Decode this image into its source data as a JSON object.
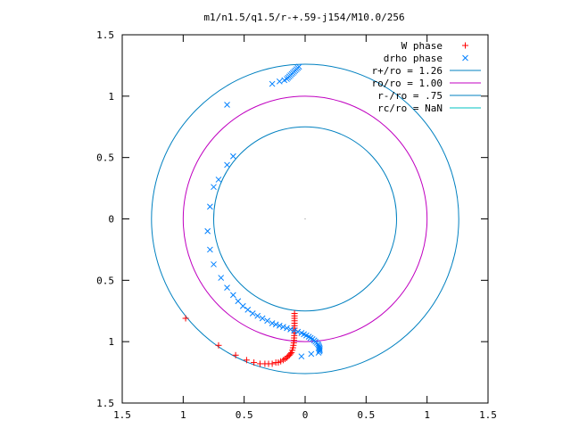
{
  "chart_data": {
    "type": "scatter",
    "title": "m1/n1.5/q1.5/r-+.59-j154/M10.0/256",
    "xlabel": "",
    "ylabel": "",
    "xlim": [
      -1.5,
      1.5
    ],
    "ylim": [
      -1.5,
      1.5
    ],
    "x_ticks": [
      {
        "value": -1.5,
        "label": "1.5"
      },
      {
        "value": -1.0,
        "label": "1"
      },
      {
        "value": -0.5,
        "label": "0.5"
      },
      {
        "value": 0.0,
        "label": "0"
      },
      {
        "value": 0.5,
        "label": "0.5"
      },
      {
        "value": 1.0,
        "label": "1"
      },
      {
        "value": 1.5,
        "label": "1.5"
      }
    ],
    "y_ticks": [
      {
        "value": 1.5,
        "label": "1.5"
      },
      {
        "value": 1.0,
        "label": "1"
      },
      {
        "value": 0.5,
        "label": "0.5"
      },
      {
        "value": 0.0,
        "label": "0"
      },
      {
        "value": -0.5,
        "label": "0.5"
      },
      {
        "value": -1.0,
        "label": "1"
      },
      {
        "value": -1.5,
        "label": "1.5"
      }
    ],
    "grid": false,
    "legend_position": "top-right",
    "center_point": {
      "x": 0,
      "y": 0
    },
    "series": [
      {
        "name": "W phase",
        "kind": "plus",
        "color": "#ff0000",
        "points": [
          [
            -0.98,
            -0.81
          ],
          [
            -0.71,
            -1.03
          ],
          [
            -0.57,
            -1.11
          ],
          [
            -0.48,
            -1.15
          ],
          [
            -0.42,
            -1.17
          ],
          [
            -0.37,
            -1.18
          ],
          [
            -0.33,
            -1.18
          ],
          [
            -0.3,
            -1.18
          ],
          [
            -0.27,
            -1.18
          ],
          [
            -0.24,
            -1.17
          ],
          [
            -0.22,
            -1.17
          ],
          [
            -0.2,
            -1.16
          ],
          [
            -0.18,
            -1.15
          ],
          [
            -0.165,
            -1.14
          ],
          [
            -0.15,
            -1.13
          ],
          [
            -0.14,
            -1.12
          ],
          [
            -0.13,
            -1.11
          ],
          [
            -0.12,
            -1.1
          ],
          [
            -0.112,
            -1.09
          ],
          [
            -0.105,
            -1.07
          ],
          [
            -0.1,
            -1.05
          ],
          [
            -0.096,
            -1.03
          ],
          [
            -0.093,
            -1.01
          ],
          [
            -0.091,
            -0.99
          ],
          [
            -0.09,
            -0.97
          ],
          [
            -0.089,
            -0.95
          ],
          [
            -0.088,
            -0.93
          ],
          [
            -0.088,
            -0.91
          ],
          [
            -0.087,
            -0.89
          ],
          [
            -0.087,
            -0.87
          ],
          [
            -0.087,
            -0.85
          ],
          [
            -0.087,
            -0.83
          ],
          [
            -0.087,
            -0.81
          ],
          [
            -0.087,
            -0.79
          ],
          [
            -0.087,
            -0.77
          ]
        ]
      },
      {
        "name": "drho phase",
        "kind": "cross",
        "color": "#0080ff",
        "points": [
          [
            -0.05,
            1.24
          ],
          [
            -0.06,
            1.23
          ],
          [
            -0.07,
            1.22
          ],
          [
            -0.08,
            1.21
          ],
          [
            -0.09,
            1.2
          ],
          [
            -0.1,
            1.19
          ],
          [
            -0.11,
            1.18
          ],
          [
            -0.12,
            1.17
          ],
          [
            -0.13,
            1.16
          ],
          [
            -0.14,
            1.15
          ],
          [
            -0.15,
            1.14
          ],
          [
            -0.17,
            1.13
          ],
          [
            -0.21,
            1.12
          ],
          [
            -0.27,
            1.1
          ],
          [
            -0.64,
            0.93
          ],
          [
            -0.59,
            0.51
          ],
          [
            -0.64,
            0.44
          ],
          [
            -0.71,
            0.32
          ],
          [
            -0.75,
            0.26
          ],
          [
            -0.78,
            0.1
          ],
          [
            -0.8,
            -0.1
          ],
          [
            -0.78,
            -0.25
          ],
          [
            -0.75,
            -0.37
          ],
          [
            -0.69,
            -0.48
          ],
          [
            -0.64,
            -0.56
          ],
          [
            -0.59,
            -0.62
          ],
          [
            -0.55,
            -0.67
          ],
          [
            -0.51,
            -0.71
          ],
          [
            -0.47,
            -0.74
          ],
          [
            -0.43,
            -0.77
          ],
          [
            -0.39,
            -0.79
          ],
          [
            -0.35,
            -0.81
          ],
          [
            -0.31,
            -0.83
          ],
          [
            -0.27,
            -0.85
          ],
          [
            -0.24,
            -0.86
          ],
          [
            -0.21,
            -0.87
          ],
          [
            -0.18,
            -0.88
          ],
          [
            -0.15,
            -0.89
          ],
          [
            -0.12,
            -0.9
          ],
          [
            -0.09,
            -0.91
          ],
          [
            -0.06,
            -0.92
          ],
          [
            -0.03,
            -0.93
          ],
          [
            -0.01,
            -0.94
          ],
          [
            0.01,
            -0.95
          ],
          [
            0.03,
            -0.96
          ],
          [
            0.045,
            -0.97
          ],
          [
            0.06,
            -0.98
          ],
          [
            0.075,
            -0.99
          ],
          [
            0.085,
            -1.0
          ],
          [
            0.095,
            -1.01
          ],
          [
            0.105,
            -1.02
          ],
          [
            0.11,
            -1.03
          ],
          [
            0.115,
            -1.04
          ],
          [
            0.118,
            -1.05
          ],
          [
            0.12,
            -1.06
          ],
          [
            0.12,
            -1.07
          ],
          [
            0.118,
            -1.08
          ],
          [
            0.11,
            -1.09
          ],
          [
            0.05,
            -1.1
          ],
          [
            -0.03,
            -1.12
          ]
        ]
      },
      {
        "name": "r+/ro = 1.26",
        "kind": "circle",
        "radius": 1.26,
        "color": "#0080c0"
      },
      {
        "name": "ro/ro = 1.00",
        "kind": "circle",
        "radius": 1.0,
        "color": "#c000c0"
      },
      {
        "name": "r-/ro = .75",
        "kind": "circle",
        "radius": 0.75,
        "color": "#0080c0"
      },
      {
        "name": "rc/ro = NaN",
        "kind": "circle",
        "radius": null,
        "color": "#00c0c0"
      }
    ]
  }
}
